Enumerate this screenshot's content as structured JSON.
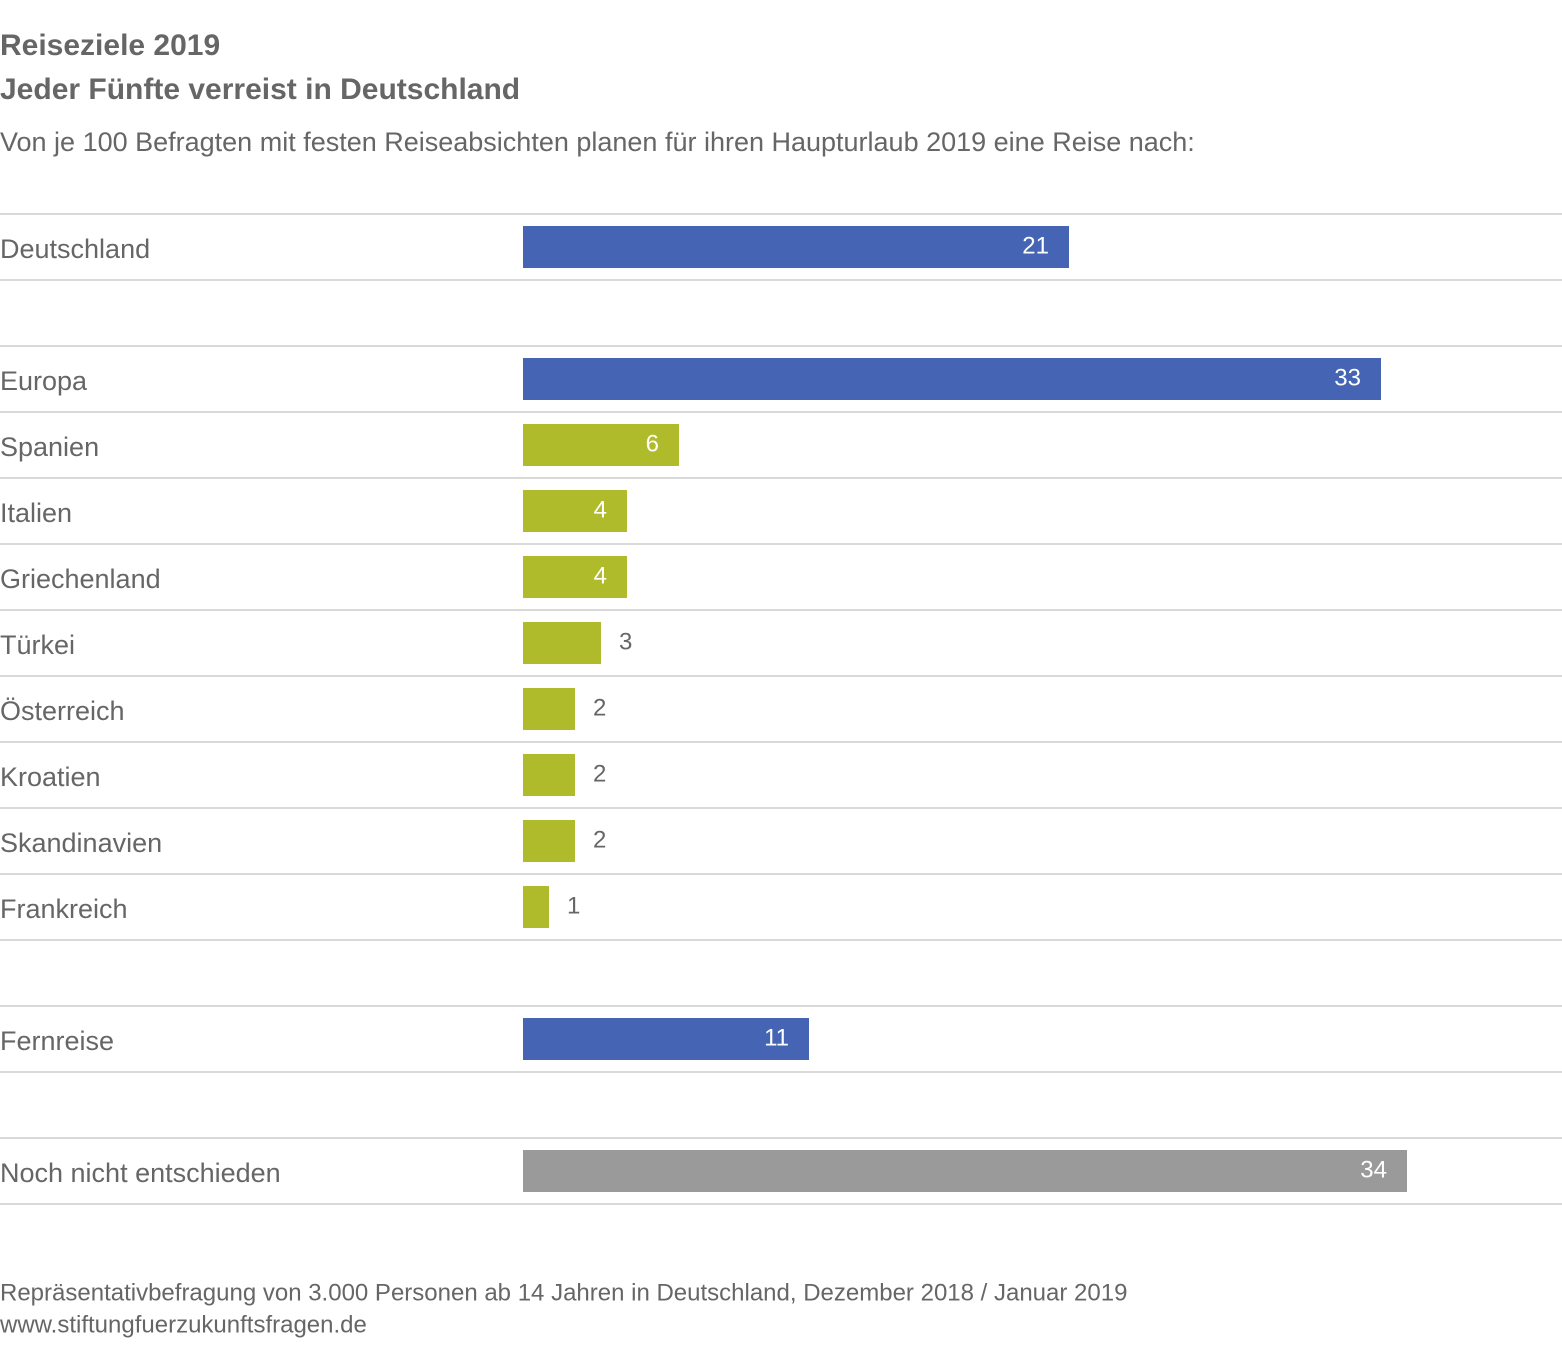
{
  "chart_data": {
    "type": "bar",
    "orientation": "horizontal",
    "title": "Reiseziele 2019",
    "subtitle": "Jeder Fünfte verreist in Deutschland",
    "description": "Von je 100 Befragten mit festen Reiseabsichten planen für ihren Haupturlaub 2019 eine Reise nach:",
    "categories": [
      "Deutschland",
      null,
      "Europa",
      "Spanien",
      "Italien",
      "Griechenland",
      "Türkei",
      "Österreich",
      "Kroatien",
      "Skandinavien",
      "Frankreich",
      null,
      "Fernreise",
      null,
      "Noch nicht entschieden"
    ],
    "values": [
      21,
      null,
      33,
      6,
      4,
      4,
      3,
      2,
      2,
      2,
      1,
      null,
      11,
      null,
      34
    ],
    "colors": [
      "#4565b4",
      null,
      "#4565b4",
      "#b0bb2c",
      "#b0bb2c",
      "#b0bb2c",
      "#b0bb2c",
      "#b0bb2c",
      "#b0bb2c",
      "#b0bb2c",
      "#b0bb2c",
      null,
      "#4565b4",
      null,
      "#9a9a9a"
    ],
    "footnote": "Repräsentativbefragung von 3.000 Personen ab 14 Jahren in Deutschland, Dezember 2018 / Januar 2019",
    "source": "www.stiftungfuerzukunftsfragen.de"
  }
}
